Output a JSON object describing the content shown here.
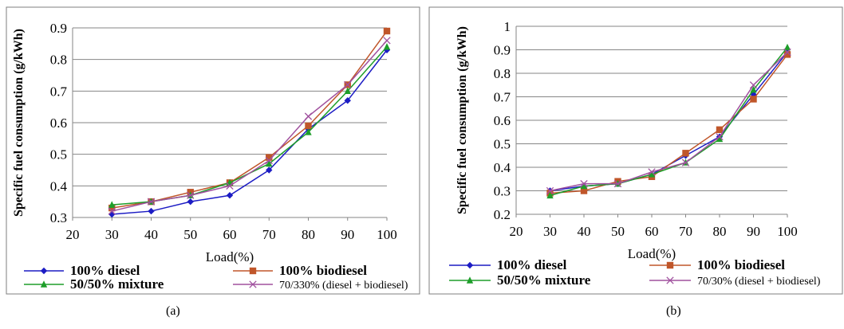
{
  "chart_data": [
    {
      "type": "line",
      "panel_label": "(a)",
      "xlabel": "Load(%)",
      "ylabel": "Specific fuel consumption (g/kWh)",
      "xlim": [
        20,
        100
      ],
      "ylim": [
        0.3,
        0.9
      ],
      "x_ticks": [
        "20",
        "30",
        "40",
        "50",
        "60",
        "70",
        "80",
        "90",
        "100"
      ],
      "y_ticks": [
        "0.3",
        "0.4",
        "0.5",
        "0.6",
        "0.7",
        "0.8",
        "0.9"
      ],
      "grid": "horizontal",
      "legend_position": "bottom",
      "x": [
        30,
        40,
        50,
        60,
        70,
        80,
        90,
        100
      ],
      "series": [
        {
          "name": "100% diesel",
          "color": "#1c1cc4",
          "marker": "diamond",
          "values": [
            0.31,
            0.32,
            0.35,
            0.37,
            0.45,
            0.58,
            0.67,
            0.83
          ]
        },
        {
          "name": "100% biodiesel",
          "color": "#c0562a",
          "marker": "square",
          "values": [
            0.33,
            0.35,
            0.38,
            0.41,
            0.49,
            0.59,
            0.72,
            0.89
          ]
        },
        {
          "name": "50/50% mixture",
          "color": "#1e9e2a",
          "marker": "triangle",
          "values": [
            0.34,
            0.35,
            0.37,
            0.41,
            0.47,
            0.57,
            0.7,
            0.84
          ]
        },
        {
          "name": "70/330% (diesel + biodiesel)",
          "color": "#a0509e",
          "marker": "x",
          "values": [
            0.32,
            0.35,
            0.37,
            0.4,
            0.48,
            0.62,
            0.72,
            0.86
          ]
        }
      ]
    },
    {
      "type": "line",
      "panel_label": "(b)",
      "xlabel": "Load(%)",
      "ylabel": "Specific fuel consumption (g/kWh)",
      "xlim": [
        20,
        100
      ],
      "ylim": [
        0.2,
        1.0
      ],
      "x_ticks": [
        "20",
        "30",
        "40",
        "50",
        "60",
        "70",
        "80",
        "90",
        "100"
      ],
      "y_ticks": [
        "0.2",
        "0.3",
        "0.4",
        "0.5",
        "0.6",
        "0.7",
        "0.8",
        "0.9",
        "1"
      ],
      "grid": "horizontal",
      "legend_position": "bottom",
      "x": [
        30,
        40,
        50,
        60,
        70,
        80,
        90,
        100
      ],
      "series": [
        {
          "name": "100% diesel",
          "color": "#1c1cc4",
          "marker": "diamond",
          "values": [
            0.3,
            0.32,
            0.33,
            0.37,
            0.45,
            0.53,
            0.71,
            0.89
          ]
        },
        {
          "name": "100% biodiesel",
          "color": "#c0562a",
          "marker": "square",
          "values": [
            0.29,
            0.3,
            0.34,
            0.36,
            0.46,
            0.56,
            0.69,
            0.88
          ]
        },
        {
          "name": "50/50% mixture",
          "color": "#1e9e2a",
          "marker": "triangle",
          "values": [
            0.28,
            0.32,
            0.33,
            0.37,
            0.42,
            0.52,
            0.73,
            0.91
          ]
        },
        {
          "name": "70/30% (diesel + biodiesel)",
          "color": "#a0509e",
          "marker": "x",
          "values": [
            0.3,
            0.33,
            0.33,
            0.38,
            0.42,
            0.53,
            0.75,
            0.89
          ]
        }
      ]
    }
  ]
}
